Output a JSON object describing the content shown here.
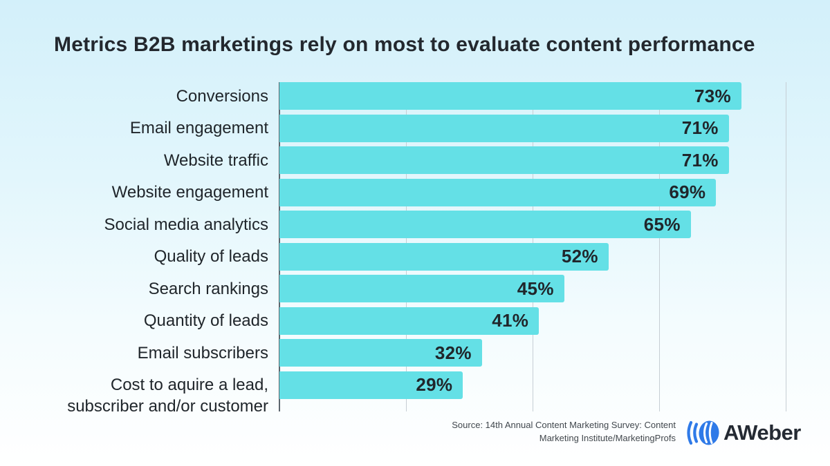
{
  "title": "Metrics B2B marketings rely on most to evaluate content performance",
  "chart_data": {
    "type": "bar",
    "orientation": "horizontal",
    "title": "Metrics B2B marketings rely on most to evaluate content performance",
    "categories": [
      "Conversions",
      "Email engagement",
      "Website traffic",
      "Website engagement",
      "Social media analytics",
      "Quality of leads",
      "Search rankings",
      "Quantity of leads",
      "Email subscribers",
      "Cost to aquire a lead,\nsubscriber and/or customer"
    ],
    "values": [
      73,
      71,
      71,
      69,
      65,
      52,
      45,
      41,
      32,
      29
    ],
    "value_suffix": "%",
    "xlim": [
      0,
      80
    ],
    "grid_step": 20,
    "grid": "vertical gridlines at 0/20/40/60/80, no tick labels",
    "legend": "none",
    "bar_color": "#64e0e6",
    "value_label_color": "#20262b"
  },
  "source": {
    "line1": "Source: 14th Annual Content Marketing Survey: Content",
    "line2": "Marketing Institute/MarketingProfs"
  },
  "logo": {
    "text": "AWeber",
    "mark": "aweber-arcs-icon",
    "blue": "#2f7ae8",
    "text_color": "#242a33"
  }
}
